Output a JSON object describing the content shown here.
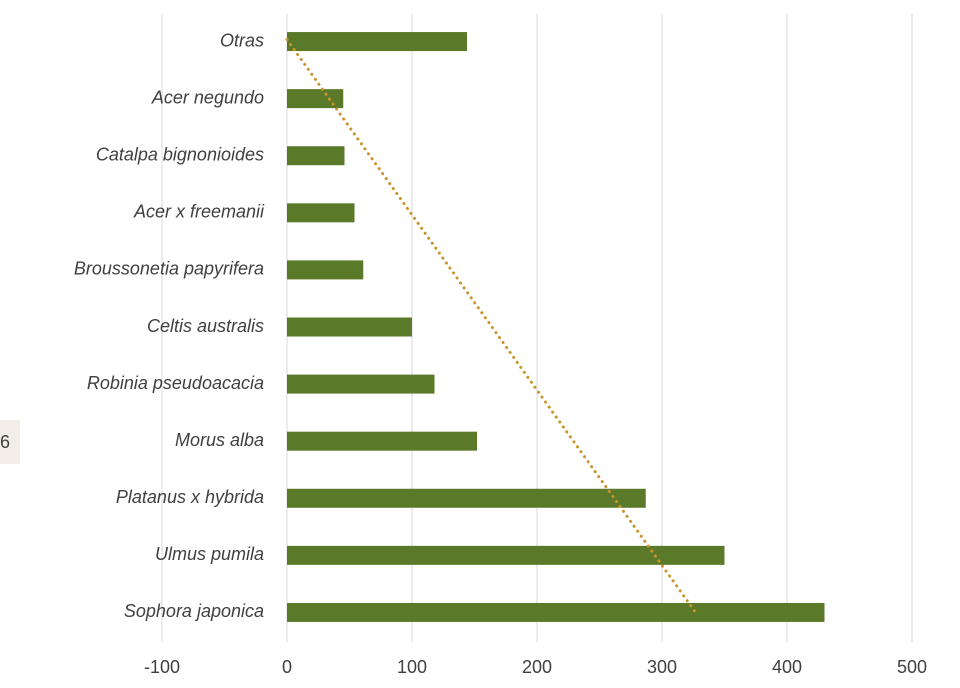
{
  "side_chip": {
    "text": "6"
  },
  "chart_data": {
    "type": "bar",
    "orientation": "horizontal",
    "categories": [
      "Otras",
      "Acer negundo",
      "Catalpa bignonioides",
      "Acer x freemanii",
      "Broussonetia papyrifera",
      "Celtis australis",
      "Robinia pseudoacacia",
      "Morus alba",
      "Platanus x hybrida",
      "Ulmus pumila",
      "Sophora japonica"
    ],
    "values": [
      144,
      45,
      46,
      54,
      61,
      100,
      118,
      152,
      287,
      350,
      430
    ],
    "xlim": [
      -100,
      500
    ],
    "xticks": [
      "-100",
      "0",
      "100",
      "200",
      "300",
      "400",
      "500"
    ],
    "xtick_values": [
      -100,
      0,
      100,
      200,
      300,
      400,
      500
    ],
    "grid": "vertical",
    "trendline": {
      "style": "dotted",
      "type": "linear",
      "from": {
        "category": "Otras",
        "x": 0
      },
      "to": {
        "category": "Sophora japonica",
        "x": 328
      }
    },
    "colors": {
      "bar": "#5a7a2a",
      "trendline": "#c9952a",
      "grid": "#d9d9d9",
      "text": "#404040"
    }
  }
}
